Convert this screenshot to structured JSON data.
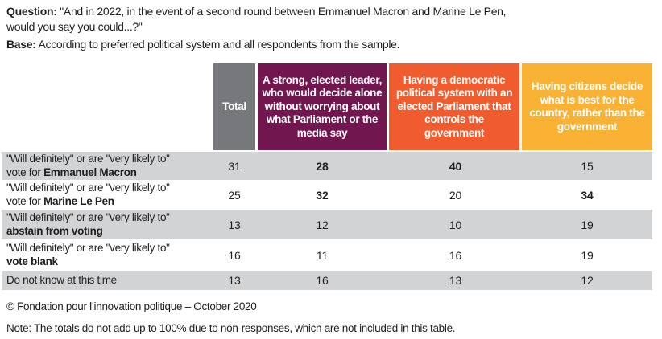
{
  "meta": {
    "question_label": "Question:",
    "question_text": " \"And in 2022, in the event of a second round between Emmanuel Macron and Marine Le Pen, would you say you could...?\"",
    "base_label": "Base:",
    "base_text": " According to preferred political system and all respondents from the sample."
  },
  "colors": {
    "header_total": "#77787b",
    "header_strong_leader": "#72164f",
    "header_democratic_system": "#f05c2e",
    "header_citizens_decide": "#f9b233",
    "shaded_row": "#d1d3d4",
    "text": "#1f1f21"
  },
  "table": {
    "columns": [
      {
        "key": "total",
        "label": "Total",
        "color": "#77787b"
      },
      {
        "key": "strong-leader",
        "label": "A strong, elected leader, who would decide alone without worrying about what Parliament or the media say",
        "color": "#72164f"
      },
      {
        "key": "democratic-system",
        "label": "Having a democratic political system with an elected Parliament that controls the government",
        "color": "#f05c2e"
      },
      {
        "key": "citizens-decide",
        "label": "Having citizens decide what is best for the country, rather than the government",
        "color": "#f9b233"
      }
    ],
    "rows": [
      {
        "line1": "\"Will definitely\" or are \"very likely to\"",
        "line2_prefix": "vote for ",
        "line2_bold": "Emmanuel Macron",
        "shaded": true,
        "values": [
          {
            "v": "31",
            "bold": false
          },
          {
            "v": "28",
            "bold": true
          },
          {
            "v": "40",
            "bold": true
          },
          {
            "v": "15",
            "bold": false
          }
        ]
      },
      {
        "line1": "\"Will definitely\" or are \"very likely to\"",
        "line2_prefix": "vote for ",
        "line2_bold": "Marine Le Pen",
        "shaded": false,
        "values": [
          {
            "v": "25",
            "bold": false
          },
          {
            "v": "32",
            "bold": true
          },
          {
            "v": "20",
            "bold": false
          },
          {
            "v": "34",
            "bold": true
          }
        ]
      },
      {
        "line1": "\"Will definitely\" or are \"very likely to\"",
        "line2_prefix": "",
        "line2_bold": "abstain from voting",
        "shaded": true,
        "values": [
          {
            "v": "13",
            "bold": false
          },
          {
            "v": "12",
            "bold": false
          },
          {
            "v": "10",
            "bold": false
          },
          {
            "v": "19",
            "bold": false
          }
        ]
      },
      {
        "line1": "\"Will definitely\" or are \"very likely to\"",
        "line2_prefix": "",
        "line2_bold": "vote blank",
        "shaded": false,
        "values": [
          {
            "v": "16",
            "bold": false
          },
          {
            "v": "11",
            "bold": false
          },
          {
            "v": "16",
            "bold": false
          },
          {
            "v": "19",
            "bold": false
          }
        ]
      },
      {
        "line1": "Do not know at this time",
        "line2_prefix": "",
        "line2_bold": "",
        "shaded": true,
        "values": [
          {
            "v": "13",
            "bold": false
          },
          {
            "v": "16",
            "bold": false
          },
          {
            "v": "13",
            "bold": false
          },
          {
            "v": "12",
            "bold": false
          }
        ]
      }
    ]
  },
  "footer": {
    "copyright": "© Fondation pour l’innovation politique – October 2020",
    "note_label": "Note:",
    "note_text": " The totals do not add up to 100% due to non-responses, which are not included in this table."
  }
}
